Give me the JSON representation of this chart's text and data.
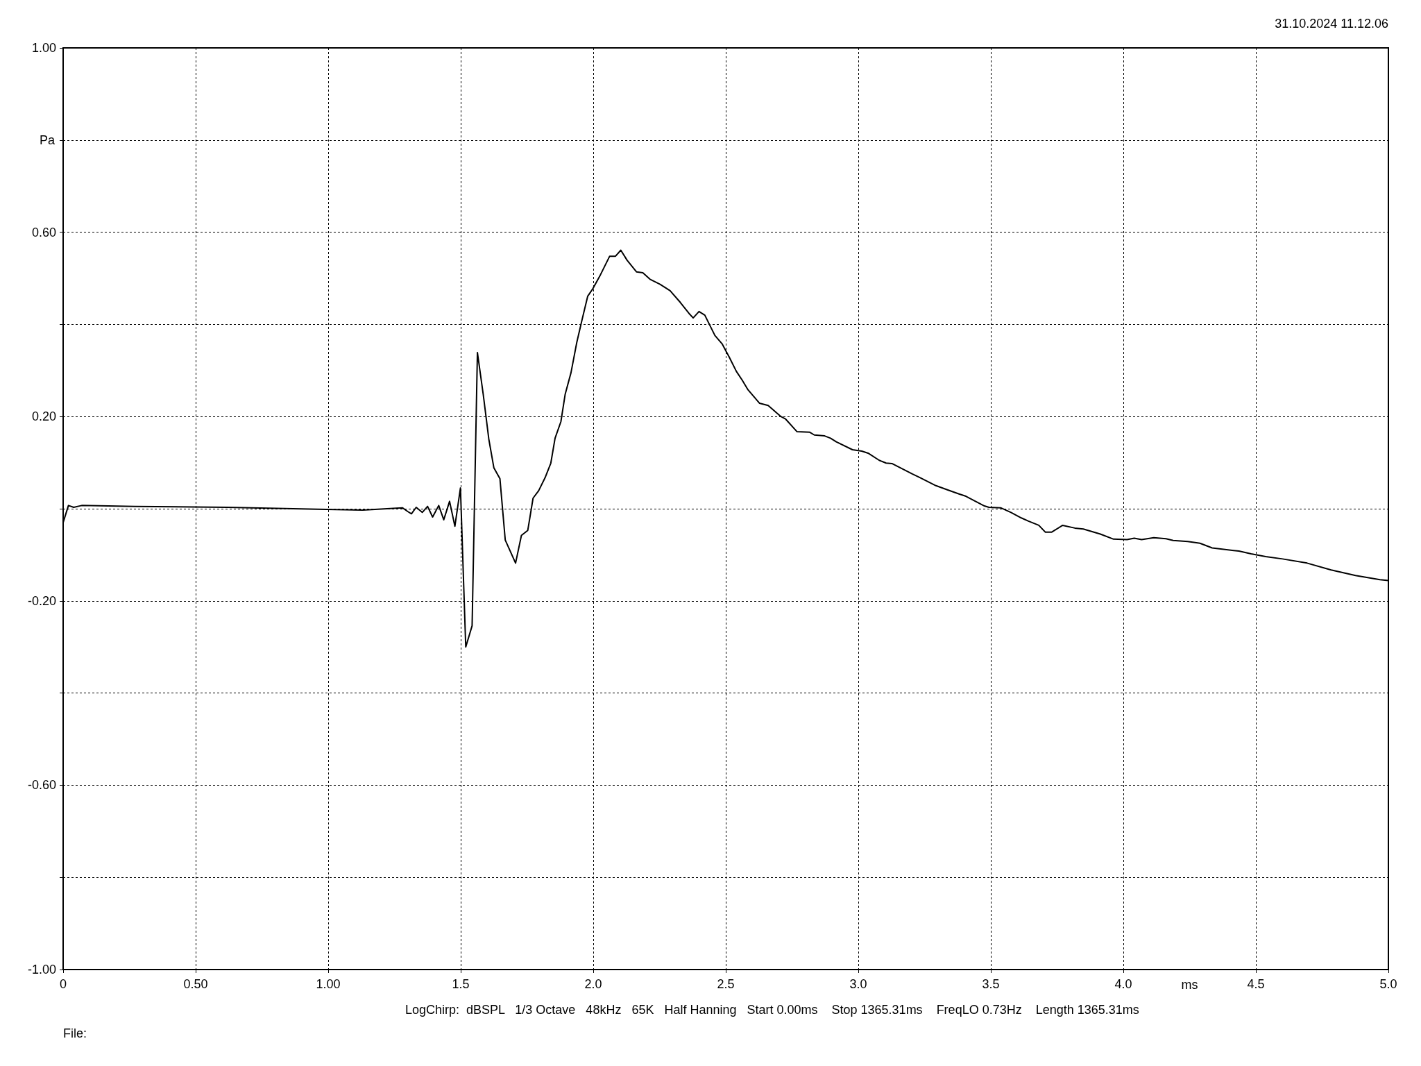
{
  "chart_data": {
    "type": "line",
    "xlabel": "ms",
    "ylabel": "Pa",
    "annotations": [
      "31.10.2024 11.12.06",
      "LogChirp:  dBSPL   1/3 Octave   48kHz   65K   Half Hanning   Start 0.00ms    Stop 1365.31ms    FreqLO 0.73Hz    Length 1365.31ms",
      "File:"
    ],
    "xlim": [
      0,
      5
    ],
    "xticks": [
      {
        "value": 0,
        "label": "0"
      },
      {
        "value": 0.5,
        "label": "0.50"
      },
      {
        "value": 1,
        "label": "1.00"
      },
      {
        "value": 1.5,
        "label": "1.5"
      },
      {
        "value": 2,
        "label": "2.0"
      },
      {
        "value": 2.5,
        "label": "2.5"
      },
      {
        "value": 3,
        "label": "3.0"
      },
      {
        "value": 3.5,
        "label": "3.5"
      },
      {
        "value": 4,
        "label": "4.0"
      },
      {
        "value": 4.5,
        "label": "4.5"
      },
      {
        "value": 5,
        "label": "5.0"
      }
    ],
    "ylim": [
      -1,
      1
    ],
    "yticks": [
      {
        "value": -1,
        "label": "-1.00"
      },
      {
        "value": -0.8,
        "label": null
      },
      {
        "value": -0.6,
        "label": "-0.60"
      },
      {
        "value": -0.4,
        "label": null
      },
      {
        "value": -0.2,
        "label": "-0.20"
      },
      {
        "value": 0,
        "label": null
      },
      {
        "value": 0.2,
        "label": "0.20"
      },
      {
        "value": 0.4,
        "label": null
      },
      {
        "value": 0.6,
        "label": "0.60"
      },
      {
        "value": 0.8,
        "label": null
      },
      {
        "value": 1,
        "label": "1.00"
      }
    ],
    "grid": true,
    "line_style": "solid",
    "x": [
      0,
      0.02,
      0.04,
      0.07,
      0.27,
      0.62,
      0.96,
      1.13,
      1.28,
      1.3,
      1.314,
      1.332,
      1.355,
      1.375,
      1.394,
      1.417,
      1.436,
      1.458,
      1.478,
      1.499,
      1.519,
      1.543,
      1.563,
      1.585,
      1.606,
      1.625,
      1.648,
      1.668,
      1.707,
      1.729,
      1.753,
      1.773,
      1.794,
      1.818,
      1.84,
      1.856,
      1.878,
      1.894,
      1.916,
      1.938,
      1.957,
      1.979,
      1.997,
      2.024,
      2.062,
      2.084,
      2.104,
      2.128,
      2.163,
      2.187,
      2.214,
      2.252,
      2.29,
      2.328,
      2.361,
      2.377,
      2.399,
      2.421,
      2.459,
      2.486,
      2.513,
      2.54,
      2.562,
      2.584,
      2.627,
      2.66,
      2.708,
      2.725,
      2.769,
      2.817,
      2.834,
      2.873,
      2.895,
      2.917,
      2.978,
      3.013,
      3.039,
      3.079,
      3.105,
      3.127,
      3.205,
      3.231,
      3.293,
      3.336,
      3.38,
      3.406,
      3.476,
      3.493,
      3.537,
      3.576,
      3.615,
      3.642,
      3.681,
      3.706,
      3.729,
      3.771,
      3.817,
      3.849,
      3.913,
      3.963,
      4.014,
      4.041,
      4.069,
      4.115,
      4.161,
      4.188,
      4.243,
      4.289,
      4.335,
      4.436,
      4.482,
      4.537,
      4.601,
      4.693,
      4.784,
      4.876,
      4.968,
      5.0
    ],
    "series": [
      {
        "color": "#000000",
        "values": [
          -0.03,
          0.007,
          0.003,
          0.007,
          0.005,
          0.003,
          -0.001,
          -0.003,
          0.002,
          -0.006,
          -0.011,
          0.003,
          -0.008,
          0.005,
          -0.018,
          0.007,
          -0.024,
          0.016,
          -0.038,
          0.045,
          -0.3,
          -0.254,
          0.339,
          0.248,
          0.151,
          0.089,
          0.065,
          -0.068,
          -0.118,
          -0.058,
          -0.047,
          0.023,
          0.039,
          0.067,
          0.099,
          0.153,
          0.189,
          0.248,
          0.295,
          0.361,
          0.408,
          0.461,
          0.476,
          0.504,
          0.548,
          0.548,
          0.561,
          0.539,
          0.514,
          0.512,
          0.498,
          0.487,
          0.473,
          0.448,
          0.424,
          0.414,
          0.428,
          0.42,
          0.376,
          0.358,
          0.329,
          0.298,
          0.279,
          0.258,
          0.229,
          0.224,
          0.2,
          0.195,
          0.167,
          0.166,
          0.16,
          0.158,
          0.153,
          0.145,
          0.128,
          0.125,
          0.12,
          0.105,
          0.099,
          0.098,
          0.075,
          0.068,
          0.05,
          0.041,
          0.032,
          0.027,
          0.006,
          0.003,
          0.002,
          -0.008,
          -0.02,
          -0.027,
          -0.036,
          -0.051,
          -0.051,
          -0.036,
          -0.042,
          -0.044,
          -0.055,
          -0.066,
          -0.067,
          -0.064,
          -0.067,
          -0.063,
          -0.065,
          -0.069,
          -0.071,
          -0.075,
          -0.085,
          -0.092,
          -0.098,
          -0.104,
          -0.109,
          -0.118,
          -0.133,
          -0.145,
          -0.154,
          -0.156
        ]
      }
    ]
  }
}
